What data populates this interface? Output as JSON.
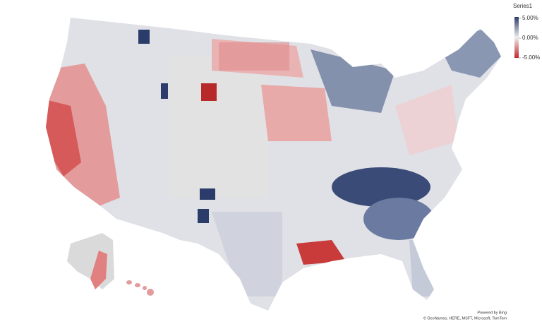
{
  "legend": {
    "title": "Series1",
    "ticks": [
      {
        "value": 5,
        "label": "5.00%"
      },
      {
        "value": 0,
        "label": "0.00%"
      },
      {
        "value": -5,
        "label": "-5.00%"
      }
    ],
    "colors": [
      "#2b3c6b",
      "#eeeeee",
      "#c0282d"
    ]
  },
  "attribution": [
    "Powered by Bing",
    "© GeoNames, HERE, MSFT, Microsoft, TomTom"
  ]
}
